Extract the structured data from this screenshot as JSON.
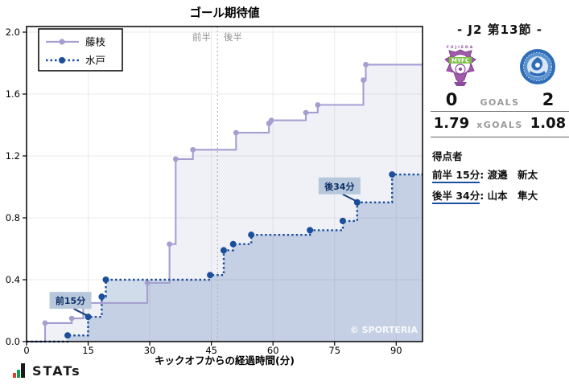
{
  "chart_data": {
    "type": "line",
    "subtype": "step-cumulative",
    "title": "ゴール期待値",
    "xlabel": "キックオフからの経過時間(分)",
    "xlim": [
      0,
      96.5
    ],
    "ylim": [
      0,
      2.0
    ],
    "xticks": [
      0,
      15,
      30,
      45,
      60,
      75,
      90
    ],
    "yticks": [
      "0.0",
      "0.4",
      "0.8",
      "1.2",
      "1.6",
      "2.0"
    ],
    "grid": true,
    "legend_position": "top-left",
    "halftime_divider_x": 46.5,
    "half_labels": {
      "first": "前半",
      "second": "後半"
    },
    "watermark": "© SPORTERIA",
    "series": [
      {
        "name": "藤枝",
        "style": "solid",
        "color": "#a49fd0",
        "fill": "rgba(164,159,208,0.16)",
        "final_xg": 1.79,
        "x": [
          4.5,
          11,
          13.8,
          29.4,
          34.8,
          36.3,
          40.5,
          51,
          59,
          59.6,
          68,
          70.9,
          82,
          82.6
        ],
        "y": [
          0.12,
          0.15,
          0.25,
          0.38,
          0.63,
          1.18,
          1.24,
          1.35,
          1.41,
          1.43,
          1.48,
          1.53,
          1.69,
          1.79
        ]
      },
      {
        "name": "水戸",
        "style": "dotted",
        "color": "#1b4e9b",
        "fill": "rgba(27,78,155,0.20)",
        "final_xg": 1.08,
        "x": [
          10,
          15,
          18.3,
          19.3,
          44.7,
          48,
          50.3,
          54.7,
          69,
          77,
          80.5,
          89
        ],
        "y": [
          0.04,
          0.16,
          0.29,
          0.4,
          0.43,
          0.59,
          0.63,
          0.69,
          0.72,
          0.78,
          0.9,
          1.08
        ]
      }
    ],
    "annotations": [
      {
        "label": "前15分",
        "x": 15,
        "y": 0.16
      },
      {
        "label": "後34分",
        "x": 80.5,
        "y": 0.9
      }
    ]
  },
  "panel": {
    "round_title": "- J2 第13節 -",
    "goals_label": "GOALS",
    "xgoals_label": "xGOALS",
    "home": {
      "name": "藤枝",
      "goals": "0",
      "xgoals": "1.79",
      "crest_top": "FUJIEDA",
      "crest_mid": "MYFC"
    },
    "away": {
      "name": "水戸",
      "goals": "2",
      "xgoals": "1.08"
    },
    "scorers_heading": "得点者",
    "scorers": [
      {
        "time": "前半 15分",
        "sep": ":",
        "player": "渡邉　新太"
      },
      {
        "time": "後半 34分",
        "sep": ":",
        "player": "山本　隼大"
      }
    ]
  },
  "footer": {
    "brand": "STATs"
  },
  "colors": {
    "home_line": "#a49fd0",
    "away_line": "#1b4e9b",
    "annotation_bg": "#b7c8dd",
    "annotation_text": "#0d2d63",
    "scorer_underline": "#1d4f9e"
  }
}
